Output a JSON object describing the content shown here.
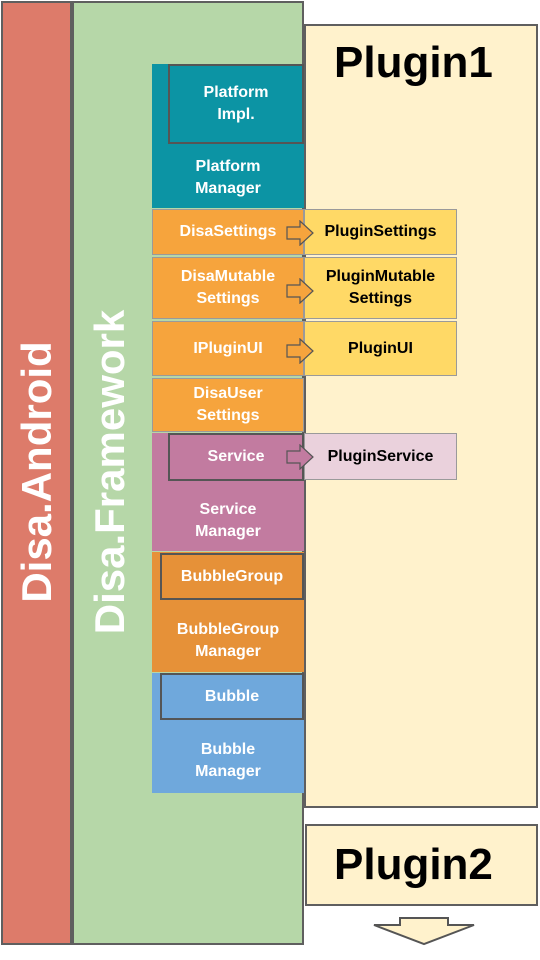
{
  "colors": {
    "android": "#dd7b6a",
    "framework": "#b6d7a8",
    "plugin_bg": "#fff2cc",
    "platform": "#0c94a4",
    "settings": "#f6a43d",
    "plugin_settings": "#ffd966",
    "service": "#c27ba0",
    "plugin_service": "#ead1dc",
    "bubblegroup": "#e69138",
    "bubble": "#6fa8dc"
  },
  "layers": {
    "android_label": "Disa.Android",
    "framework_label": "Disa.Framework"
  },
  "plugins": {
    "plugin1_title": "Plugin1",
    "plugin2_title": "Plugin2"
  },
  "framework_blocks": {
    "platform_impl": "Platform\nImpl.",
    "platform_manager": "Platform\nManager",
    "disa_settings": "DisaSettings",
    "disa_mutable_settings": "DisaMutable\nSettings",
    "iplugin_ui": "IPluginUI",
    "disa_user_settings": "DisaUser\nSettings",
    "service": "Service",
    "service_manager": "Service\nManager",
    "bubble_group": "BubbleGroup",
    "bubble_group_manager": "BubbleGroup\nManager",
    "bubble": "Bubble",
    "bubble_manager": "Bubble\nManager"
  },
  "plugin_blocks": {
    "plugin_settings": "PluginSettings",
    "plugin_mutable_settings": "PluginMutable\nSettings",
    "plugin_ui": "PluginUI",
    "plugin_service": "PluginService"
  },
  "arrows": [
    "arrow",
    "arrow",
    "arrow",
    "arrow",
    "down-arrow"
  ]
}
